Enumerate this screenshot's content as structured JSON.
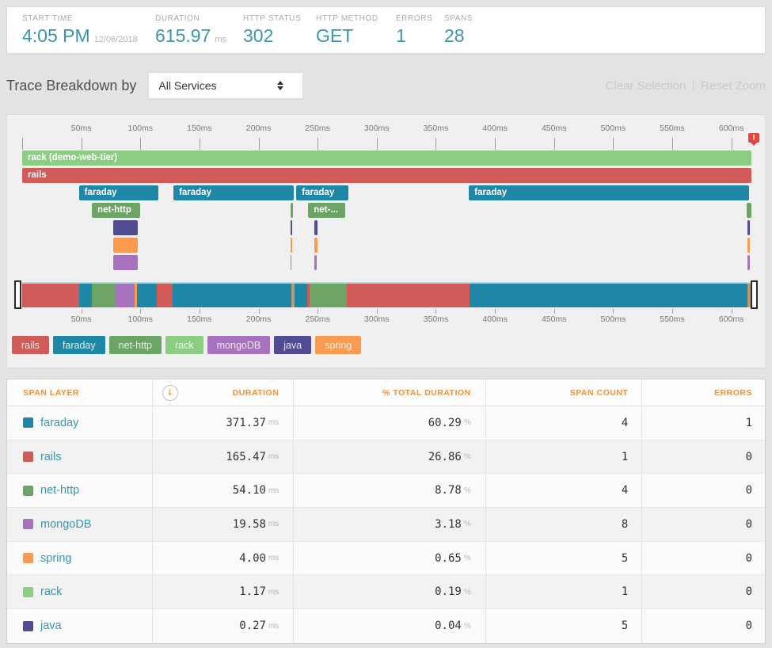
{
  "colors": {
    "rails": "#d15b58",
    "faraday": "#1e87a5",
    "net_http": "#6ba465",
    "rack": "#8ccd83",
    "mongoDB": "#a672be",
    "java": "#514b92",
    "spring": "#f89b51",
    "mixed": "#bd9a6d",
    "accent_teal": "#3a96ad",
    "accent_orange": "#f0913b",
    "error_red": "#e0473f"
  },
  "header": {
    "metrics": [
      {
        "label": "START TIME",
        "value": "4:05 PM",
        "suffix": "12/06/2018"
      },
      {
        "label": "DURATION",
        "value": "615.97",
        "suffix": "ms"
      },
      {
        "label": "HTTP STATUS",
        "value": "302",
        "suffix": ""
      },
      {
        "label": "HTTP METHOD",
        "value": "GET",
        "suffix": ""
      },
      {
        "label": "ERRORS",
        "value": "1",
        "suffix": ""
      },
      {
        "label": "SPANS",
        "value": "28",
        "suffix": ""
      }
    ],
    "metric_widths": [
      168,
      111,
      92,
      101,
      61,
      60
    ]
  },
  "breakdown": {
    "title": "Trace Breakdown by",
    "dropdown_value": "All Services",
    "clear_selection": "Clear Selection",
    "reset_zoom": "Reset Zoom"
  },
  "timeline": {
    "total_ms": 617,
    "tick_interval_ms": 50,
    "tick_labels": [
      "",
      "50ms",
      "100ms",
      "150ms",
      "200ms",
      "250ms",
      "300ms",
      "350ms",
      "400ms",
      "450ms",
      "500ms",
      "550ms",
      "600ms"
    ],
    "error_marker": "!",
    "rows": [
      {
        "layer": "rack",
        "spans": [
          {
            "start": 0,
            "end": 617,
            "label": "rack (demo-web-tier)"
          }
        ]
      },
      {
        "layer": "rails",
        "spans": [
          {
            "start": 0,
            "end": 617,
            "label": "rails"
          }
        ]
      },
      {
        "layer": "faraday",
        "spans": [
          {
            "start": 48,
            "end": 115,
            "label": "faraday"
          },
          {
            "start": 128,
            "end": 230,
            "label": "faraday"
          },
          {
            "start": 232,
            "end": 276,
            "label": "faraday"
          },
          {
            "start": 378,
            "end": 615,
            "label": "faraday"
          }
        ]
      },
      {
        "layer": "net_http",
        "spans": [
          {
            "start": 59,
            "end": 100,
            "label": "net-http"
          },
          {
            "start": 227,
            "end": 229,
            "label": ""
          },
          {
            "start": 242,
            "end": 273,
            "label": "net-..."
          },
          {
            "start": 613,
            "end": 617,
            "label": ""
          }
        ]
      },
      {
        "layer": "java",
        "spans": [
          {
            "start": 77,
            "end": 98,
            "label": ""
          },
          {
            "start": 227,
            "end": 228.5,
            "label": ""
          },
          {
            "start": 247.5,
            "end": 250,
            "label": ""
          },
          {
            "start": 613.5,
            "end": 616,
            "label": ""
          }
        ]
      },
      {
        "layer": "spring",
        "spans": [
          {
            "start": 77,
            "end": 98,
            "label": ""
          },
          {
            "start": 227,
            "end": 228.5,
            "label": ""
          },
          {
            "start": 247.5,
            "end": 250,
            "label": ""
          },
          {
            "start": 613.5,
            "end": 616,
            "label": ""
          }
        ]
      },
      {
        "layer": "mongoDB",
        "spans": [
          {
            "start": 77,
            "end": 98,
            "label": ""
          },
          {
            "start": 227,
            "end": 228,
            "label": ""
          },
          {
            "start": 247.5,
            "end": 249,
            "label": ""
          },
          {
            "start": 613.5,
            "end": 615.5,
            "label": ""
          }
        ]
      }
    ],
    "minimap_segments": [
      {
        "layer": "rails",
        "from": 0,
        "to": 7.8
      },
      {
        "layer": "faraday",
        "from": 7.8,
        "to": 9.6
      },
      {
        "layer": "net_http",
        "from": 9.6,
        "to": 12.8
      },
      {
        "layer": "mongoDB",
        "from": 12.8,
        "to": 15.4
      },
      {
        "layer": "spring",
        "from": 15.4,
        "to": 15.7
      },
      {
        "layer": "faraday",
        "from": 15.7,
        "to": 18.5
      },
      {
        "layer": "rails",
        "from": 18.5,
        "to": 20.6
      },
      {
        "layer": "faraday",
        "from": 20.6,
        "to": 36.9
      },
      {
        "layer": "mixed",
        "from": 36.9,
        "to": 37.4
      },
      {
        "layer": "faraday",
        "from": 37.4,
        "to": 39.1
      },
      {
        "layer": "rails",
        "from": 39.1,
        "to": 39.4
      },
      {
        "layer": "net_http",
        "from": 39.4,
        "to": 44.5
      },
      {
        "layer": "rails",
        "from": 44.5,
        "to": 61.3
      },
      {
        "layer": "faraday",
        "from": 61.3,
        "to": 99.5
      },
      {
        "layer": "mixed",
        "from": 99.5,
        "to": 100
      }
    ]
  },
  "legend": [
    {
      "label": "rails",
      "layer": "rails"
    },
    {
      "label": "faraday",
      "layer": "faraday"
    },
    {
      "label": "net-http",
      "layer": "net_http"
    },
    {
      "label": "rack",
      "layer": "rack"
    },
    {
      "label": "mongoDB",
      "layer": "mongoDB"
    },
    {
      "label": "java",
      "layer": "java"
    },
    {
      "label": "spring",
      "layer": "spring"
    }
  ],
  "table": {
    "columns": [
      {
        "label": "SPAN LAYER"
      },
      {
        "label": "DURATION",
        "sort_icon": "down-arrow"
      },
      {
        "label": "% TOTAL DURATION"
      },
      {
        "label": "SPAN COUNT"
      },
      {
        "label": "ERRORS"
      }
    ],
    "units": {
      "duration": "ms",
      "pct": "%"
    },
    "rows": [
      {
        "layer": "faraday",
        "name": "faraday",
        "duration": "371.37",
        "pct": "60.29",
        "count": "4",
        "errors": "1"
      },
      {
        "layer": "rails",
        "name": "rails",
        "duration": "165.47",
        "pct": "26.86",
        "count": "1",
        "errors": "0"
      },
      {
        "layer": "net_http",
        "name": "net-http",
        "duration": "54.10",
        "pct": "8.78",
        "count": "4",
        "errors": "0"
      },
      {
        "layer": "mongoDB",
        "name": "mongoDB",
        "duration": "19.58",
        "pct": "3.18",
        "count": "8",
        "errors": "0"
      },
      {
        "layer": "spring",
        "name": "spring",
        "duration": "4.00",
        "pct": "0.65",
        "count": "5",
        "errors": "0"
      },
      {
        "layer": "rack",
        "name": "rack",
        "duration": "1.17",
        "pct": "0.19",
        "count": "1",
        "errors": "0"
      },
      {
        "layer": "java",
        "name": "java",
        "duration": "0.27",
        "pct": "0.04",
        "count": "5",
        "errors": "0"
      }
    ]
  }
}
